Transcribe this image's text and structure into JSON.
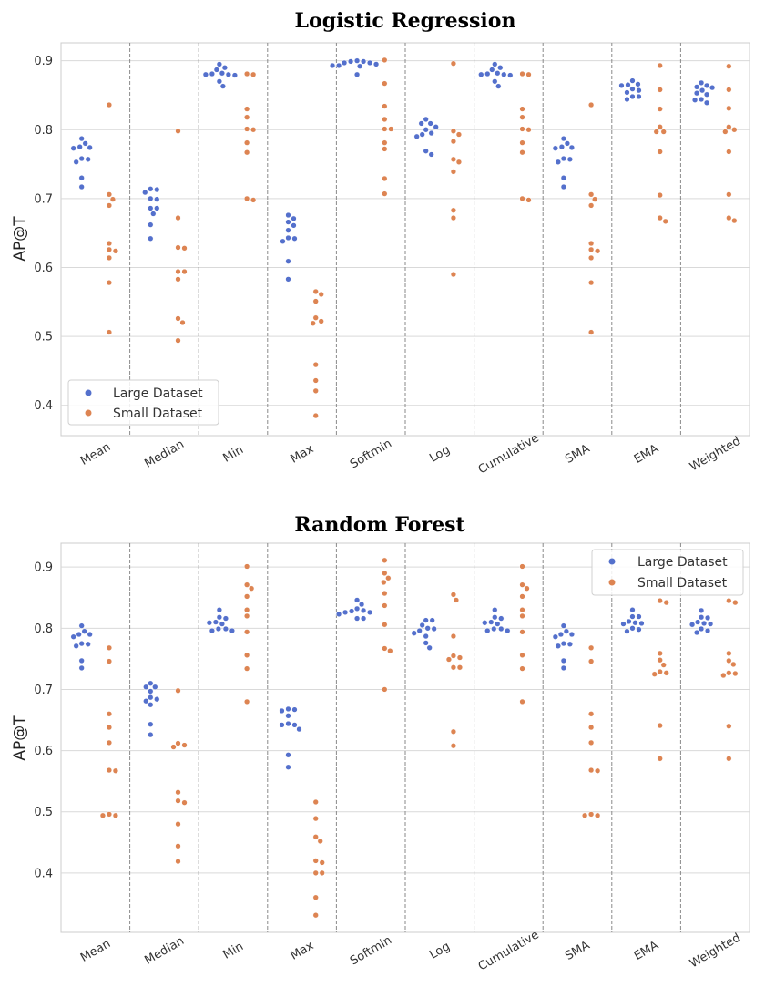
{
  "colors": {
    "large": "#5470cc",
    "small": "#dd8452",
    "grid": "#d9d9d9",
    "separator": "#8a8a8a"
  },
  "chart_data": [
    {
      "type": "scatter",
      "subtype": "swarm",
      "title": "Logistic Regression",
      "xlabel": "",
      "ylabel": "AP@T",
      "ylim": [
        0.356,
        0.926
      ],
      "yticks": [
        0.4,
        0.5,
        0.6,
        0.7,
        0.8,
        0.9
      ],
      "grid": true,
      "legend_placement": "lower-left",
      "categories": [
        "Mean",
        "Median",
        "Min",
        "Max",
        "Softmin",
        "Log",
        "Cumulative",
        "SMA",
        "EMA",
        "Weighted"
      ],
      "series": [
        {
          "name": "Large Dataset",
          "values": [
            [
              0.787,
              0.78,
              0.774,
              0.773,
              0.775,
              0.758,
              0.757,
              0.753,
              0.73,
              0.717
            ],
            [
              0.714,
              0.713,
              0.709,
              0.7,
              0.699,
              0.686,
              0.686,
              0.678,
              0.662,
              0.642
            ],
            [
              0.895,
              0.89,
              0.887,
              0.882,
              0.881,
              0.88,
              0.879,
              0.88,
              0.87,
              0.863
            ],
            [
              0.676,
              0.671,
              0.666,
              0.661,
              0.654,
              0.642,
              0.643,
              0.638,
              0.609,
              0.583
            ],
            [
              0.9,
              0.899,
              0.899,
              0.897,
              0.897,
              0.895,
              0.893,
              0.892,
              0.893,
              0.88
            ],
            [
              0.815,
              0.809,
              0.809,
              0.804,
              0.8,
              0.795,
              0.793,
              0.79,
              0.769,
              0.764
            ],
            [
              0.895,
              0.89,
              0.887,
              0.882,
              0.881,
              0.88,
              0.879,
              0.88,
              0.87,
              0.863
            ],
            [
              0.787,
              0.78,
              0.774,
              0.773,
              0.775,
              0.758,
              0.757,
              0.753,
              0.73,
              0.717
            ],
            [
              0.871,
              0.866,
              0.865,
              0.864,
              0.859,
              0.857,
              0.854,
              0.848,
              0.848,
              0.844
            ],
            [
              0.868,
              0.864,
              0.862,
              0.861,
              0.857,
              0.853,
              0.851,
              0.844,
              0.843,
              0.839
            ]
          ]
        },
        {
          "name": "Small Dataset",
          "values": [
            [
              0.836,
              0.706,
              0.699,
              0.69,
              0.635,
              0.626,
              0.624,
              0.614,
              0.578,
              0.506
            ],
            [
              0.798,
              0.672,
              0.629,
              0.628,
              0.594,
              0.594,
              0.583,
              0.526,
              0.52,
              0.494
            ],
            [
              0.881,
              0.88,
              0.83,
              0.818,
              0.801,
              0.8,
              0.781,
              0.767,
              0.7,
              0.698
            ],
            [
              0.565,
              0.561,
              0.551,
              0.527,
              0.522,
              0.519,
              0.459,
              0.436,
              0.421,
              0.385
            ],
            [
              0.901,
              0.867,
              0.834,
              0.815,
              0.801,
              0.801,
              0.781,
              0.772,
              0.729,
              0.707
            ],
            [
              0.896,
              0.798,
              0.793,
              0.783,
              0.757,
              0.753,
              0.739,
              0.683,
              0.672,
              0.59
            ],
            [
              0.881,
              0.88,
              0.83,
              0.818,
              0.801,
              0.8,
              0.781,
              0.767,
              0.7,
              0.698
            ],
            [
              0.836,
              0.706,
              0.699,
              0.69,
              0.635,
              0.626,
              0.624,
              0.614,
              0.578,
              0.506
            ],
            [
              0.893,
              0.858,
              0.83,
              0.804,
              0.797,
              0.797,
              0.768,
              0.705,
              0.672,
              0.667
            ],
            [
              0.892,
              0.858,
              0.831,
              0.804,
              0.8,
              0.797,
              0.768,
              0.706,
              0.672,
              0.668
            ]
          ]
        }
      ]
    },
    {
      "type": "scatter",
      "subtype": "swarm",
      "title": "Random Forest",
      "xlabel": "",
      "ylabel": "AP@T",
      "ylim": [
        0.303,
        0.939
      ],
      "yticks": [
        0.4,
        0.5,
        0.6,
        0.7,
        0.8,
        0.9
      ],
      "grid": true,
      "legend_placement": "upper-right",
      "categories": [
        "Mean",
        "Median",
        "Min",
        "Max",
        "Softmin",
        "Log",
        "Cumulative",
        "SMA",
        "EMA",
        "Weighted"
      ],
      "series": [
        {
          "name": "Large Dataset",
          "values": [
            [
              0.804,
              0.795,
              0.79,
              0.79,
              0.786,
              0.775,
              0.774,
              0.771,
              0.747,
              0.735
            ],
            [
              0.71,
              0.704,
              0.704,
              0.697,
              0.687,
              0.684,
              0.681,
              0.675,
              0.643,
              0.626
            ],
            [
              0.83,
              0.818,
              0.816,
              0.809,
              0.81,
              0.807,
              0.799,
              0.799,
              0.796,
              0.796
            ],
            [
              0.668,
              0.667,
              0.665,
              0.657,
              0.644,
              0.642,
              0.642,
              0.635,
              0.593,
              0.573
            ],
            [
              0.846,
              0.839,
              0.832,
              0.829,
              0.828,
              0.826,
              0.826,
              0.823,
              0.816,
              0.816
            ],
            [
              0.813,
              0.813,
              0.805,
              0.8,
              0.799,
              0.796,
              0.792,
              0.787,
              0.776,
              0.768
            ],
            [
              0.83,
              0.818,
              0.816,
              0.809,
              0.81,
              0.807,
              0.799,
              0.799,
              0.796,
              0.796
            ],
            [
              0.804,
              0.795,
              0.79,
              0.79,
              0.786,
              0.775,
              0.774,
              0.771,
              0.747,
              0.735
            ],
            [
              0.83,
              0.819,
              0.819,
              0.811,
              0.809,
              0.808,
              0.807,
              0.8,
              0.798,
              0.795
            ],
            [
              0.829,
              0.818,
              0.817,
              0.81,
              0.807,
              0.806,
              0.808,
              0.799,
              0.796,
              0.793
            ]
          ]
        },
        {
          "name": "Small Dataset",
          "values": [
            [
              0.768,
              0.746,
              0.66,
              0.638,
              0.613,
              0.567,
              0.568,
              0.496,
              0.494,
              0.494
            ],
            [
              0.698,
              0.612,
              0.609,
              0.606,
              0.532,
              0.518,
              0.515,
              0.48,
              0.444,
              0.419
            ],
            [
              0.901,
              0.871,
              0.865,
              0.852,
              0.83,
              0.82,
              0.794,
              0.756,
              0.734,
              0.68
            ],
            [
              0.516,
              0.489,
              0.459,
              0.452,
              0.42,
              0.417,
              0.4,
              0.4,
              0.36,
              0.331
            ],
            [
              0.911,
              0.89,
              0.882,
              0.875,
              0.857,
              0.837,
              0.806,
              0.767,
              0.763,
              0.7
            ],
            [
              0.855,
              0.846,
              0.787,
              0.755,
              0.752,
              0.749,
              0.736,
              0.736,
              0.631,
              0.608
            ],
            [
              0.901,
              0.871,
              0.865,
              0.852,
              0.83,
              0.82,
              0.794,
              0.756,
              0.734,
              0.68
            ],
            [
              0.768,
              0.746,
              0.66,
              0.638,
              0.613,
              0.567,
              0.568,
              0.496,
              0.494,
              0.494
            ],
            [
              0.845,
              0.842,
              0.759,
              0.748,
              0.74,
              0.729,
              0.727,
              0.725,
              0.641,
              0.587
            ],
            [
              0.845,
              0.842,
              0.759,
              0.747,
              0.741,
              0.727,
              0.726,
              0.723,
              0.64,
              0.587
            ]
          ]
        }
      ]
    }
  ]
}
